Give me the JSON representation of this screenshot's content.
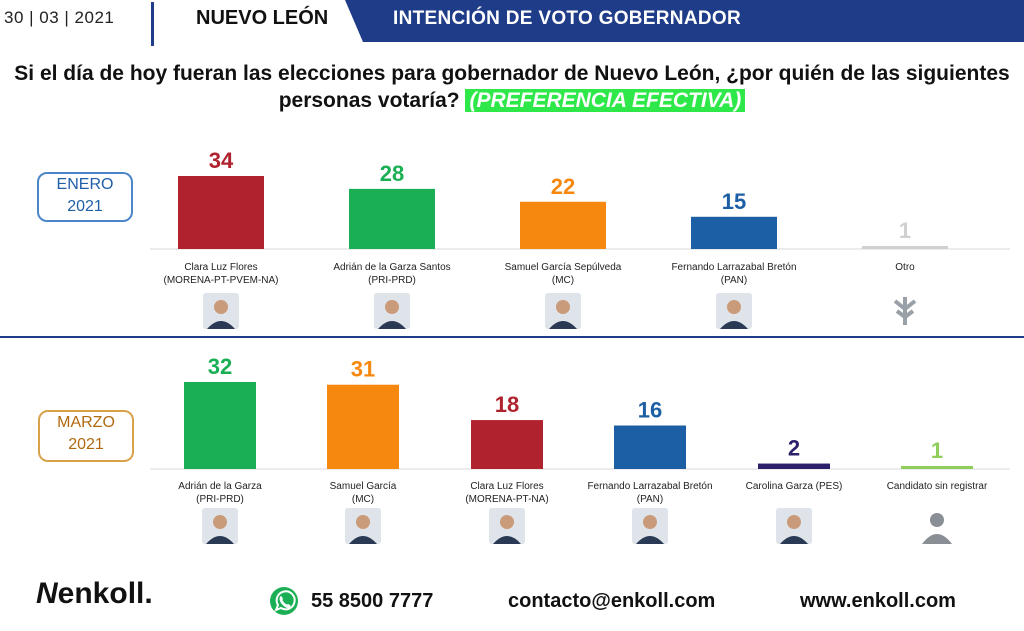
{
  "header": {
    "date": "30 | 03 | 2021",
    "state": "NUEVO LEÓN",
    "banner_title": "INTENCIÓN DE VOTO GOBERNADOR",
    "banner_color": "#1f3c88"
  },
  "question": {
    "text": "Si el día de hoy fueran las elecciones para gobernador de Nuevo León, ¿por quién de las siguientes personas votaría?",
    "highlight": "(PREFERENCIA EFECTIVA)",
    "highlight_color": "#2ee84a"
  },
  "chart_data": [
    {
      "type": "bar",
      "period": "ENERO\n2021",
      "categories": [
        "Clara Luz Flores\n(MORENA-PT-PVEM-NA)",
        "Adrián de la Garza Santos\n(PRI-PRD)",
        "Samuel García Sepúlveda\n(MC)",
        "Fernando Larrazabal Bretón\n(PAN)",
        "Otro"
      ],
      "values": [
        34,
        28,
        22,
        15,
        1
      ],
      "colors": [
        "#b0232e",
        "#1aaf54",
        "#f7880f",
        "#1d5fa5",
        "#d0d0d0"
      ],
      "photo_icons": [
        "candidate-photo",
        "candidate-photo",
        "candidate-photo",
        "candidate-photo",
        "enkoll-logo-icon"
      ]
    },
    {
      "type": "bar",
      "period": "MARZO\n2021",
      "categories": [
        "Adrián de la Garza\n(PRI-PRD)",
        "Samuel García\n(MC)",
        "Clara Luz Flores\n(MORENA-PT-NA)",
        "Fernando Larrazabal Bretón\n(PAN)",
        "Carolina Garza (PES)",
        "Candidato sin registrar"
      ],
      "values": [
        32,
        31,
        18,
        16,
        2,
        1
      ],
      "colors": [
        "#1aaf54",
        "#f7880f",
        "#b0232e",
        "#1d5fa5",
        "#2e1f6b",
        "#8fce5a"
      ],
      "photo_icons": [
        "candidate-photo",
        "candidate-photo",
        "candidate-photo",
        "candidate-photo",
        "candidate-photo",
        "person-silhouette-icon"
      ]
    }
  ],
  "footer": {
    "logo": "enkoll.",
    "phone": "55 8500 7777",
    "email": "contacto@enkoll.com",
    "web": "www.enkoll.com"
  }
}
